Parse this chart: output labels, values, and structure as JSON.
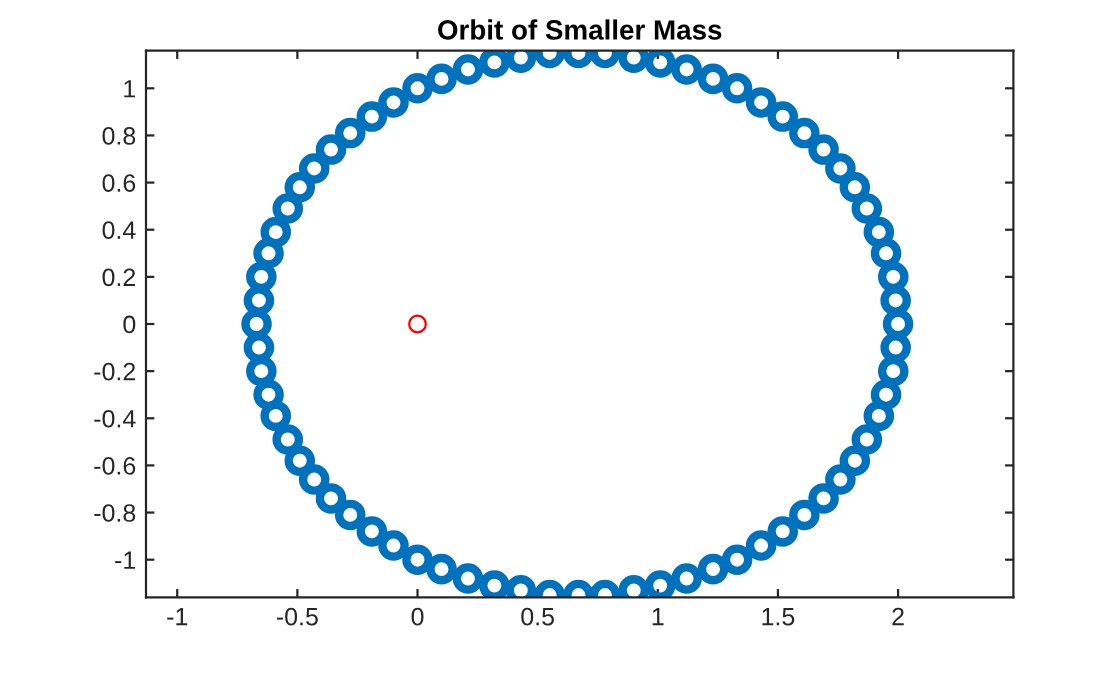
{
  "chart_data": {
    "type": "scatter",
    "title": "Orbit of Smaller Mass",
    "marker": "circle",
    "grid": false,
    "xlim": [
      -1.13,
      2.48
    ],
    "ylim": [
      -1.16,
      1.16
    ],
    "xticks": [
      -1,
      -0.5,
      0,
      0.5,
      1,
      1.5,
      2
    ],
    "yticks": [
      -1,
      -0.8,
      -0.6,
      -0.4,
      -0.2,
      0,
      0.2,
      0.4,
      0.6,
      0.8,
      1
    ],
    "series": [
      {
        "color": "#0072bd",
        "x": [
          2.0,
          1.99,
          1.98,
          1.95,
          1.92,
          1.87,
          1.82,
          1.76,
          1.69,
          1.61,
          1.52,
          1.43,
          1.33,
          1.23,
          1.12,
          1.01,
          0.9,
          0.78,
          0.67,
          0.55,
          0.43,
          0.32,
          0.21,
          0.1,
          0.0,
          -0.1,
          -0.19,
          -0.28,
          -0.36,
          -0.43,
          -0.49,
          -0.54,
          -0.59,
          -0.62,
          -0.65,
          -0.66,
          -0.67,
          -0.66,
          -0.65,
          -0.62,
          -0.59,
          -0.54,
          -0.49,
          -0.43,
          -0.36,
          -0.28,
          -0.19,
          -0.1,
          0.0,
          0.1,
          0.21,
          0.32,
          0.43,
          0.55,
          0.67,
          0.78,
          0.9,
          1.01,
          1.12,
          1.23,
          1.33,
          1.43,
          1.52,
          1.61,
          1.69,
          1.76,
          1.82,
          1.87,
          1.92,
          1.95,
          1.98,
          1.99
        ],
        "values": [
          0,
          0.1,
          0.2,
          0.3,
          0.39,
          0.49,
          0.58,
          0.66,
          0.74,
          0.81,
          0.88,
          0.94,
          1.0,
          1.04,
          1.08,
          1.11,
          1.13,
          1.15,
          1.15,
          1.15,
          1.13,
          1.11,
          1.08,
          1.04,
          1.0,
          0.94,
          0.88,
          0.81,
          0.74,
          0.66,
          0.58,
          0.49,
          0.39,
          0.3,
          0.2,
          0.1,
          0,
          -0.1,
          -0.2,
          -0.3,
          -0.39,
          -0.49,
          -0.58,
          -0.66,
          -0.74,
          -0.81,
          -0.88,
          -0.94,
          -1.0,
          -1.04,
          -1.08,
          -1.11,
          -1.13,
          -1.15,
          -1.15,
          -1.15,
          -1.13,
          -1.11,
          -1.08,
          -1.04,
          -1.0,
          -0.94,
          -0.88,
          -0.81,
          -0.74,
          -0.66,
          -0.58,
          -0.49,
          -0.39,
          -0.3,
          -0.2,
          -0.1
        ]
      },
      {
        "color": "#ff0000",
        "x": [
          0
        ],
        "values": [
          0
        ]
      }
    ]
  }
}
